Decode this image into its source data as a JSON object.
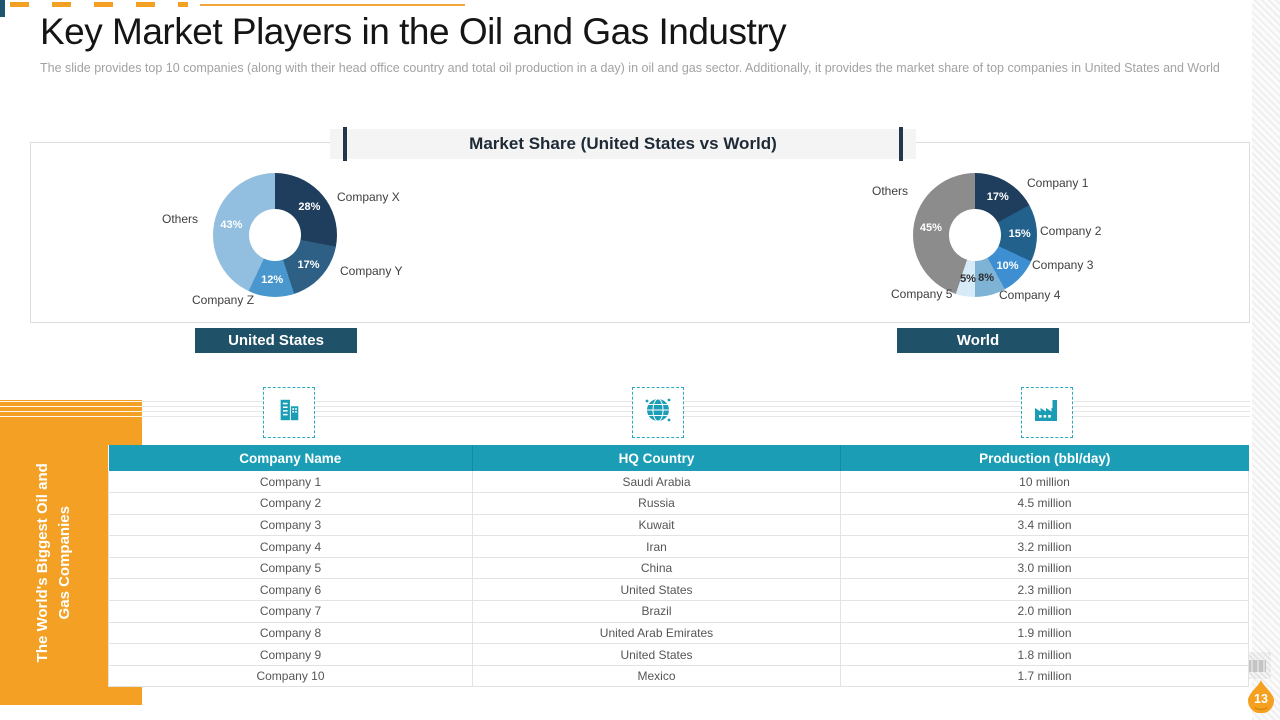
{
  "slide": {
    "title": "Key Market Players in the Oil and Gas Industry",
    "subtitle": "The slide provides  top 10 companies (along with their head office country and total oil production in a day) in oil and gas sector. Additionally, it provides  the market share of top companies in United States and World",
    "page_number": "13"
  },
  "market_share": {
    "header": "Market Share (United States vs World)"
  },
  "sidebar": {
    "vertical_text": "The World's Biggest Oil and\nGas Companies"
  },
  "chart_data": [
    {
      "type": "pie",
      "variant": "donut",
      "title": "United States",
      "labels": [
        "Company X",
        "Company Y",
        "Company Z",
        "Others"
      ],
      "values": [
        28,
        17,
        12,
        43
      ],
      "colors": [
        "#1F3D5C",
        "#2E5F85",
        "#4A97CD",
        "#92BFDF"
      ],
      "label_colors": [
        "#FFFFFF",
        "#FFFFFF",
        "#FFFFFF",
        "#FFFFFF"
      ],
      "legend_position": "callout-labels",
      "start_angle_deg": 0,
      "direction": "clockwise"
    },
    {
      "type": "pie",
      "variant": "donut",
      "title": "World",
      "labels": [
        "Company 1",
        "Company 2",
        "Company 3",
        "Company 4",
        "Company 5",
        "Others"
      ],
      "values": [
        17,
        15,
        10,
        8,
        5,
        45
      ],
      "colors": [
        "#1F3D5C",
        "#21618C",
        "#3D8FD1",
        "#7FB3D5",
        "#D6EAF8",
        "#8C8C8C"
      ],
      "label_colors": [
        "#FFFFFF",
        "#FFFFFF",
        "#FFFFFF",
        "#2D2D2D",
        "#2D2D2D",
        "#FFFFFF"
      ],
      "legend_position": "callout-labels",
      "start_angle_deg": 0,
      "direction": "clockwise"
    }
  ],
  "table": {
    "headers": [
      "Company Name",
      "HQ Country",
      "Production (bbl/day)"
    ],
    "rows": [
      [
        "Company 1",
        "Saudi Arabia",
        "10 million"
      ],
      [
        "Company 2",
        "Russia",
        "4.5 million"
      ],
      [
        "Company 3",
        "Kuwait",
        "3.4 million"
      ],
      [
        "Company 4",
        "Iran",
        "3.2 million"
      ],
      [
        "Company 5",
        "China",
        "3.0 million"
      ],
      [
        "Company 6",
        "United States",
        "2.3 million"
      ],
      [
        "Company 7",
        "Brazil",
        "2.0 million"
      ],
      [
        "Company 8",
        "United Arab Emirates",
        "1.9 million"
      ],
      [
        "Company 9",
        "United States",
        "1.8 million"
      ],
      [
        "Company 10",
        "Mexico",
        "1.7 million"
      ]
    ]
  },
  "icons": {
    "company_column": "building-icon",
    "hq_column": "globe-icon",
    "production_column": "factory-icon",
    "page_marker": "oil-drop-icon"
  },
  "colors": {
    "accent_orange": "#F4A024",
    "teal": "#1B9EB5",
    "badge_navy": "#1F5168",
    "header_bar_dark": "#22384A"
  }
}
